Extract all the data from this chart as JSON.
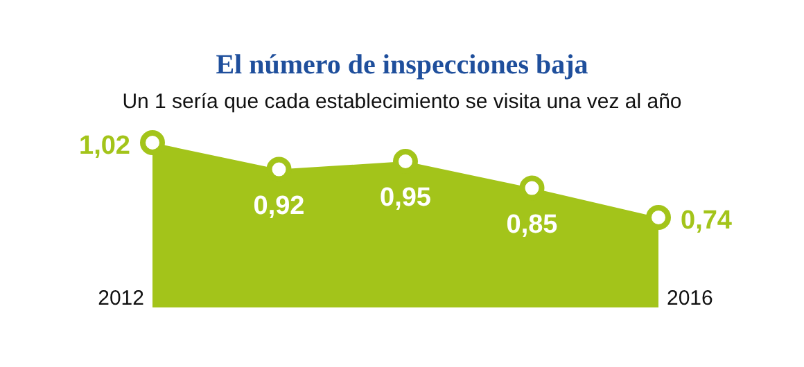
{
  "chart_data": {
    "type": "area",
    "title": "El número de inspecciones baja",
    "subtitle": "Un 1 sería que cada establecimiento se visita una vez al año",
    "categories": [
      null,
      null,
      null,
      null,
      null
    ],
    "marker": "circle",
    "annotations": [
      "2012",
      "2016"
    ],
    "series": [
      {
        "color": "#a3c41a",
        "values": [
          1.02,
          0.92,
          0.95,
          0.85,
          0.74
        ],
        "value_labels": [
          "1,02",
          "0,92",
          "0,95",
          "0,85",
          "0,74"
        ]
      }
    ]
  }
}
